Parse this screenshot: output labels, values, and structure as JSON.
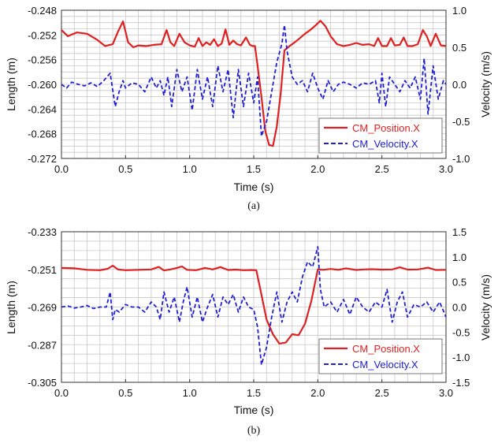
{
  "chart_data": [
    {
      "type": "line",
      "caption": "(a)",
      "xlabel": "Time (s)",
      "ylabel": "Length (m)",
      "y2label": "Velocity (m/s)",
      "xlim": [
        0,
        3
      ],
      "ylim": [
        -0.272,
        -0.248
      ],
      "y2lim": [
        -1.0,
        1.0
      ],
      "xticks": [
        "0.0",
        "0.5",
        "1.0",
        "1.5",
        "2.0",
        "2.5",
        "3.0"
      ],
      "yticks": [
        "-0.248",
        "-0.252",
        "-0.256",
        "-0.260",
        "-0.264",
        "-0.268",
        "-0.272"
      ],
      "y2ticks": [
        "1.0",
        "0.5",
        "0.0",
        "-0.5",
        "-1.0"
      ],
      "grid": true,
      "legend_position": "bottom-right",
      "series": [
        {
          "name": "CM_Position.X",
          "axis": "left",
          "color": "#e02020",
          "dash": "solid",
          "x": [
            0.0,
            0.05,
            0.12,
            0.2,
            0.28,
            0.34,
            0.4,
            0.44,
            0.48,
            0.52,
            0.56,
            0.6,
            0.66,
            0.72,
            0.78,
            0.82,
            0.85,
            0.88,
            0.92,
            0.96,
            1.0,
            1.04,
            1.07,
            1.1,
            1.13,
            1.16,
            1.19,
            1.22,
            1.25,
            1.28,
            1.31,
            1.34,
            1.37,
            1.4,
            1.44,
            1.47,
            1.49,
            1.51,
            1.53,
            1.56,
            1.59,
            1.62,
            1.65,
            1.68,
            1.71,
            1.74,
            1.78,
            1.82,
            1.86,
            1.9,
            1.94,
            1.98,
            2.02,
            2.06,
            2.1,
            2.15,
            2.2,
            2.25,
            2.3,
            2.35,
            2.4,
            2.44,
            2.47,
            2.5,
            2.54,
            2.57,
            2.6,
            2.64,
            2.67,
            2.7,
            2.74,
            2.78,
            2.82,
            2.85,
            2.88,
            2.92,
            2.96,
            3.0
          ],
          "y": [
            -0.2512,
            -0.2522,
            -0.2516,
            -0.2518,
            -0.2528,
            -0.2538,
            -0.2535,
            -0.2515,
            -0.2498,
            -0.2532,
            -0.254,
            -0.2537,
            -0.2538,
            -0.2536,
            -0.2535,
            -0.2512,
            -0.2532,
            -0.2538,
            -0.2518,
            -0.2532,
            -0.2537,
            -0.2539,
            -0.2525,
            -0.2538,
            -0.2532,
            -0.2536,
            -0.2527,
            -0.2538,
            -0.2534,
            -0.2511,
            -0.2536,
            -0.2529,
            -0.2535,
            -0.2537,
            -0.2524,
            -0.2536,
            -0.2538,
            -0.2538,
            -0.257,
            -0.262,
            -0.2675,
            -0.2698,
            -0.27,
            -0.2668,
            -0.2615,
            -0.2545,
            -0.2538,
            -0.2532,
            -0.2525,
            -0.2518,
            -0.2512,
            -0.2505,
            -0.2497,
            -0.2506,
            -0.2522,
            -0.2535,
            -0.2538,
            -0.2536,
            -0.2533,
            -0.2536,
            -0.2535,
            -0.2538,
            -0.2525,
            -0.2538,
            -0.2538,
            -0.2525,
            -0.2537,
            -0.2536,
            -0.2524,
            -0.2538,
            -0.2538,
            -0.2535,
            -0.2512,
            -0.2522,
            -0.2538,
            -0.2518,
            -0.2537,
            -0.2538
          ]
        },
        {
          "name": "CM_Velocity.X",
          "axis": "right",
          "color": "#2020d0",
          "dash": "dashed",
          "x": [
            0.0,
            0.04,
            0.08,
            0.13,
            0.18,
            0.23,
            0.28,
            0.33,
            0.38,
            0.42,
            0.45,
            0.48,
            0.5,
            0.55,
            0.6,
            0.65,
            0.7,
            0.74,
            0.77,
            0.8,
            0.83,
            0.86,
            0.9,
            0.94,
            0.98,
            1.02,
            1.06,
            1.1,
            1.14,
            1.18,
            1.22,
            1.26,
            1.3,
            1.34,
            1.38,
            1.42,
            1.46,
            1.5,
            1.53,
            1.56,
            1.6,
            1.64,
            1.68,
            1.72,
            1.74,
            1.76,
            1.8,
            1.84,
            1.88,
            1.92,
            1.96,
            2.0,
            2.04,
            2.08,
            2.12,
            2.16,
            2.2,
            2.25,
            2.3,
            2.35,
            2.4,
            2.45,
            2.48,
            2.5,
            2.53,
            2.56,
            2.6,
            2.64,
            2.68,
            2.72,
            2.76,
            2.8,
            2.83,
            2.86,
            2.9,
            2.94,
            2.98,
            3.0
          ],
          "y": [
            0.0,
            -0.05,
            0.03,
            0.0,
            -0.02,
            0.02,
            -0.03,
            0.05,
            0.15,
            -0.3,
            -0.1,
            0.05,
            -0.05,
            0.02,
            0.0,
            -0.1,
            0.1,
            -0.05,
            0.05,
            -0.15,
            0.1,
            -0.3,
            0.2,
            -0.1,
            0.1,
            -0.35,
            0.2,
            -0.2,
            0.1,
            -0.3,
            0.25,
            -0.1,
            0.2,
            -0.45,
            0.2,
            -0.3,
            0.15,
            -0.25,
            0.1,
            -0.7,
            -0.5,
            -0.1,
            0.3,
            0.55,
            0.8,
            0.45,
            0.1,
            0.0,
            0.05,
            -0.1,
            0.15,
            -0.05,
            -0.2,
            0.05,
            -0.1,
            0.0,
            0.03,
            0.0,
            -0.05,
            0.02,
            0.0,
            0.05,
            -0.25,
            0.15,
            -0.3,
            0.1,
            0.0,
            -0.1,
            0.05,
            -0.05,
            0.1,
            -0.2,
            0.35,
            -0.4,
            0.25,
            -0.2,
            0.05,
            0.0
          ]
        }
      ]
    },
    {
      "type": "line",
      "caption": "(b)",
      "xlabel": "Time (s)",
      "ylabel": "Length (m)",
      "y2label": "Velocity (m/s)",
      "xlim": [
        0,
        3
      ],
      "ylim": [
        -0.305,
        -0.233
      ],
      "y2lim": [
        -1.5,
        1.5
      ],
      "xticks": [
        "0.0",
        "0.5",
        "1.0",
        "1.5",
        "2.0",
        "2.5",
        "3.0"
      ],
      "yticks": [
        "-0.233",
        "-0.251",
        "-0.269",
        "-0.287",
        "-0.305"
      ],
      "y2ticks": [
        "1.5",
        "1.0",
        "0.5",
        "0.0",
        "-0.5",
        "-1.0",
        "-1.5"
      ],
      "grid": true,
      "legend_position": "bottom-right",
      "series": [
        {
          "name": "CM_Position.X",
          "axis": "left",
          "color": "#e02020",
          "dash": "solid",
          "x": [
            0.0,
            0.1,
            0.2,
            0.3,
            0.36,
            0.4,
            0.44,
            0.5,
            0.6,
            0.7,
            0.76,
            0.8,
            0.85,
            0.9,
            0.94,
            0.98,
            1.05,
            1.12,
            1.18,
            1.24,
            1.3,
            1.36,
            1.42,
            1.48,
            1.52,
            1.55,
            1.6,
            1.65,
            1.7,
            1.75,
            1.8,
            1.85,
            1.9,
            1.95,
            2.0,
            2.04,
            2.1,
            2.16,
            2.22,
            2.3,
            2.36,
            2.42,
            2.5,
            2.58,
            2.64,
            2.7,
            2.78,
            2.86,
            2.92,
            3.0
          ],
          "y": [
            -0.2503,
            -0.2505,
            -0.2512,
            -0.2514,
            -0.2507,
            -0.2492,
            -0.251,
            -0.2514,
            -0.2512,
            -0.251,
            -0.2498,
            -0.2515,
            -0.251,
            -0.2503,
            -0.2496,
            -0.2512,
            -0.2514,
            -0.2503,
            -0.251,
            -0.2499,
            -0.2513,
            -0.2511,
            -0.2514,
            -0.2513,
            -0.2514,
            -0.26,
            -0.275,
            -0.282,
            -0.2865,
            -0.286,
            -0.282,
            -0.2825,
            -0.277,
            -0.266,
            -0.251,
            -0.2512,
            -0.2508,
            -0.2512,
            -0.2505,
            -0.2513,
            -0.251,
            -0.2509,
            -0.2511,
            -0.251,
            -0.25,
            -0.2511,
            -0.251,
            -0.2502,
            -0.2513,
            -0.2512
          ]
        },
        {
          "name": "CM_Velocity.X",
          "axis": "right",
          "color": "#2020d0",
          "dash": "dashed",
          "x": [
            0.0,
            0.05,
            0.1,
            0.15,
            0.2,
            0.25,
            0.3,
            0.35,
            0.38,
            0.4,
            0.42,
            0.45,
            0.5,
            0.55,
            0.6,
            0.65,
            0.7,
            0.74,
            0.77,
            0.8,
            0.84,
            0.88,
            0.92,
            0.95,
            0.98,
            1.02,
            1.06,
            1.1,
            1.14,
            1.18,
            1.22,
            1.26,
            1.3,
            1.34,
            1.38,
            1.42,
            1.46,
            1.5,
            1.53,
            1.56,
            1.6,
            1.64,
            1.68,
            1.72,
            1.76,
            1.8,
            1.84,
            1.88,
            1.92,
            1.96,
            2.0,
            2.02,
            2.05,
            2.1,
            2.15,
            2.2,
            2.25,
            2.3,
            2.35,
            2.4,
            2.45,
            2.5,
            2.54,
            2.58,
            2.62,
            2.66,
            2.7,
            2.75,
            2.8,
            2.85,
            2.9,
            2.95,
            3.0
          ],
          "y": [
            0.0,
            0.02,
            -0.02,
            0.0,
            0.03,
            -0.03,
            0.0,
            0.0,
            0.3,
            -0.25,
            -0.05,
            -0.1,
            0.05,
            0.0,
            0.0,
            -0.1,
            0.1,
            0.0,
            -0.25,
            0.3,
            -0.1,
            0.2,
            -0.3,
            0.1,
            0.4,
            -0.2,
            0.2,
            -0.3,
            0.0,
            0.25,
            -0.2,
            0.2,
            0.05,
            0.25,
            -0.1,
            0.2,
            0.0,
            -0.05,
            -0.4,
            -1.15,
            -0.8,
            -0.2,
            0.3,
            -0.3,
            0.1,
            0.3,
            0.1,
            0.6,
            0.9,
            0.8,
            1.2,
            0.35,
            0.0,
            0.1,
            -0.1,
            0.15,
            -0.15,
            0.2,
            0.0,
            -0.1,
            0.1,
            0.0,
            0.35,
            -0.3,
            0.1,
            0.3,
            -0.2,
            0.05,
            0.0,
            0.1,
            -0.1,
            0.1,
            -0.2
          ]
        }
      ]
    }
  ]
}
